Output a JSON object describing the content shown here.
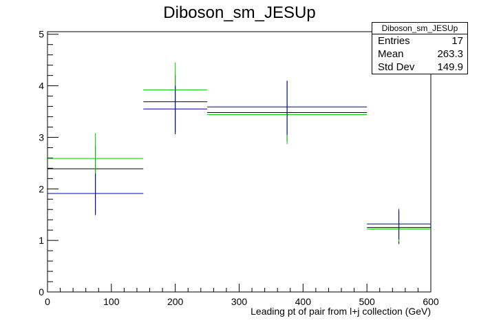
{
  "chart_data": {
    "type": "scatter",
    "title": "Diboson_sm_JESUp",
    "xlabel": "Leading pt of pair from l+j collection (GeV)",
    "ylabel": "",
    "xlim": [
      0,
      600
    ],
    "ylim": [
      0,
      5.05
    ],
    "x_ticks": [
      "0",
      "100",
      "200",
      "300",
      "400",
      "500",
      "600"
    ],
    "y_ticks": [
      "0",
      "1",
      "2",
      "3",
      "4",
      "5"
    ],
    "grid": false,
    "colors": {
      "black": "#000000",
      "green": "#00cc00",
      "blue": "#0000aa"
    },
    "series": [
      {
        "color": "#000000",
        "points": [
          {
            "xlow": 0,
            "xhigh": 150,
            "x": 75,
            "y": 2.39,
            "err_low": 1.49,
            "err_high": 2.84
          },
          {
            "xlow": 150,
            "xhigh": 250,
            "x": 200,
            "y": 3.69,
            "err_low": 3.06,
            "err_high": 4.21
          },
          {
            "xlow": 250,
            "xhigh": 500,
            "x": 375,
            "y": 3.48,
            "err_low": 2.92,
            "err_high": 4.09
          },
          {
            "xlow": 500,
            "xhigh": 600,
            "x": 550,
            "y": 1.25,
            "err_low": 0.93,
            "err_high": 1.56
          }
        ]
      },
      {
        "color": "#00cc00",
        "points": [
          {
            "xlow": 0,
            "xhigh": 150,
            "x": 75,
            "y": 2.59,
            "err_low": 2.13,
            "err_high": 3.08
          },
          {
            "xlow": 150,
            "xhigh": 250,
            "x": 200,
            "y": 3.92,
            "err_low": 3.4,
            "err_high": 4.45
          },
          {
            "xlow": 250,
            "xhigh": 500,
            "x": 375,
            "y": 3.44,
            "err_low": 2.87,
            "err_high": 4.0
          },
          {
            "xlow": 500,
            "xhigh": 600,
            "x": 550,
            "y": 1.22,
            "err_low": 0.97,
            "err_high": 1.5
          }
        ]
      },
      {
        "color": "#0000aa",
        "points": [
          {
            "xlow": 0,
            "xhigh": 150,
            "x": 75,
            "y": 1.91,
            "err_low": 1.52,
            "err_high": 2.3
          },
          {
            "xlow": 150,
            "xhigh": 250,
            "x": 200,
            "y": 3.55,
            "err_low": 3.1,
            "err_high": 4.0
          },
          {
            "xlow": 250,
            "xhigh": 500,
            "x": 375,
            "y": 3.59,
            "err_low": 3.05,
            "err_high": 4.1
          },
          {
            "xlow": 500,
            "xhigh": 600,
            "x": 550,
            "y": 1.32,
            "err_low": 1.02,
            "err_high": 1.61
          }
        ]
      }
    ]
  },
  "stats": {
    "title": "Diboson_sm_JESUp",
    "entries_label": "Entries",
    "entries_value": "17",
    "mean_label": "Mean",
    "mean_value": "263.3",
    "stddev_label": "Std Dev",
    "stddev_value": "149.9"
  }
}
